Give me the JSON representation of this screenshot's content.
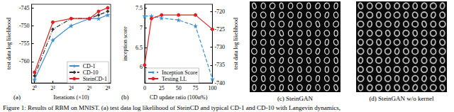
{
  "chart_data": [
    {
      "type": "line",
      "title": "(a)",
      "x_label": "Iterations (×10)",
      "y_label": "test data log likelihood",
      "log": "x",
      "grid": false,
      "legend": "bottom-right",
      "x": [
        1,
        4,
        16,
        64,
        128,
        256
      ],
      "xlim": [
        0.8,
        320
      ],
      "xticks": [
        {
          "value": 1,
          "label": "2⁰"
        },
        {
          "value": 4,
          "label": "2²"
        },
        {
          "value": 16,
          "label": "2⁴"
        },
        {
          "value": 64,
          "label": "2⁶"
        },
        {
          "value": 256,
          "label": "2⁸"
        }
      ],
      "ylim": [
        -766,
        -744
      ],
      "yticks": [
        -760,
        -755,
        -750,
        -745
      ],
      "series": [
        {
          "name": "CD-1",
          "color": "#3d8fd1",
          "marker": "star",
          "line_style": "solid",
          "values": [
            -765,
            -754,
            -750,
            -748,
            -748,
            -747
          ]
        },
        {
          "name": "CD-10",
          "color": "#333333",
          "marker": "diamond",
          "line_style": "dashdot",
          "values": [
            -764,
            -751,
            -748,
            -748,
            -747,
            -746
          ]
        },
        {
          "name": "SteinCD-1",
          "color": "#e02020",
          "marker": "circle",
          "line_style": "solid",
          "values": [
            -763,
            -749,
            -748,
            -748,
            -746,
            -745
          ]
        }
      ]
    },
    {
      "type": "line",
      "title": "(b)",
      "x_label": "CD update ratio (100α%)",
      "y_label": "inception score",
      "y2_label": "test data log likelihood",
      "grid": false,
      "legend": "bottom",
      "x": [
        0,
        10,
        25,
        50,
        75,
        100
      ],
      "xlim": [
        0,
        100
      ],
      "xticks": [
        0,
        25,
        50,
        75,
        100
      ],
      "ylim": [
        5.6,
        7.6
      ],
      "yticks": [
        6,
        6.5,
        7,
        7.5
      ],
      "y2lim": [
        -740,
        -718
      ],
      "y2ticks": [
        -740,
        -735,
        -730,
        -725,
        -720
      ],
      "series": [
        {
          "name": "Inception Score",
          "color": "#3d8fd1",
          "marker": "star",
          "line_style": "dashed",
          "values": [
            7.3,
            7.3,
            7.25,
            7.2,
            7.05,
            5.7
          ]
        },
        {
          "name": "Testing LL",
          "color": "#e02020",
          "marker": "circle",
          "line_style": "solid",
          "axis": "y2",
          "values": [
            -735,
            -722,
            -721,
            -721,
            -721,
            -725
          ]
        }
      ]
    }
  ],
  "images": [
    {
      "label": "(c) SteinGAN"
    },
    {
      "label": "(d) SteinGAN w/o kernel"
    }
  ],
  "caption": "Figure 1: Results of RBM on MNIST. (a) test data log likelihood of SteinCD and typical CD-1 and CD-10 with Langevin dynamics,"
}
